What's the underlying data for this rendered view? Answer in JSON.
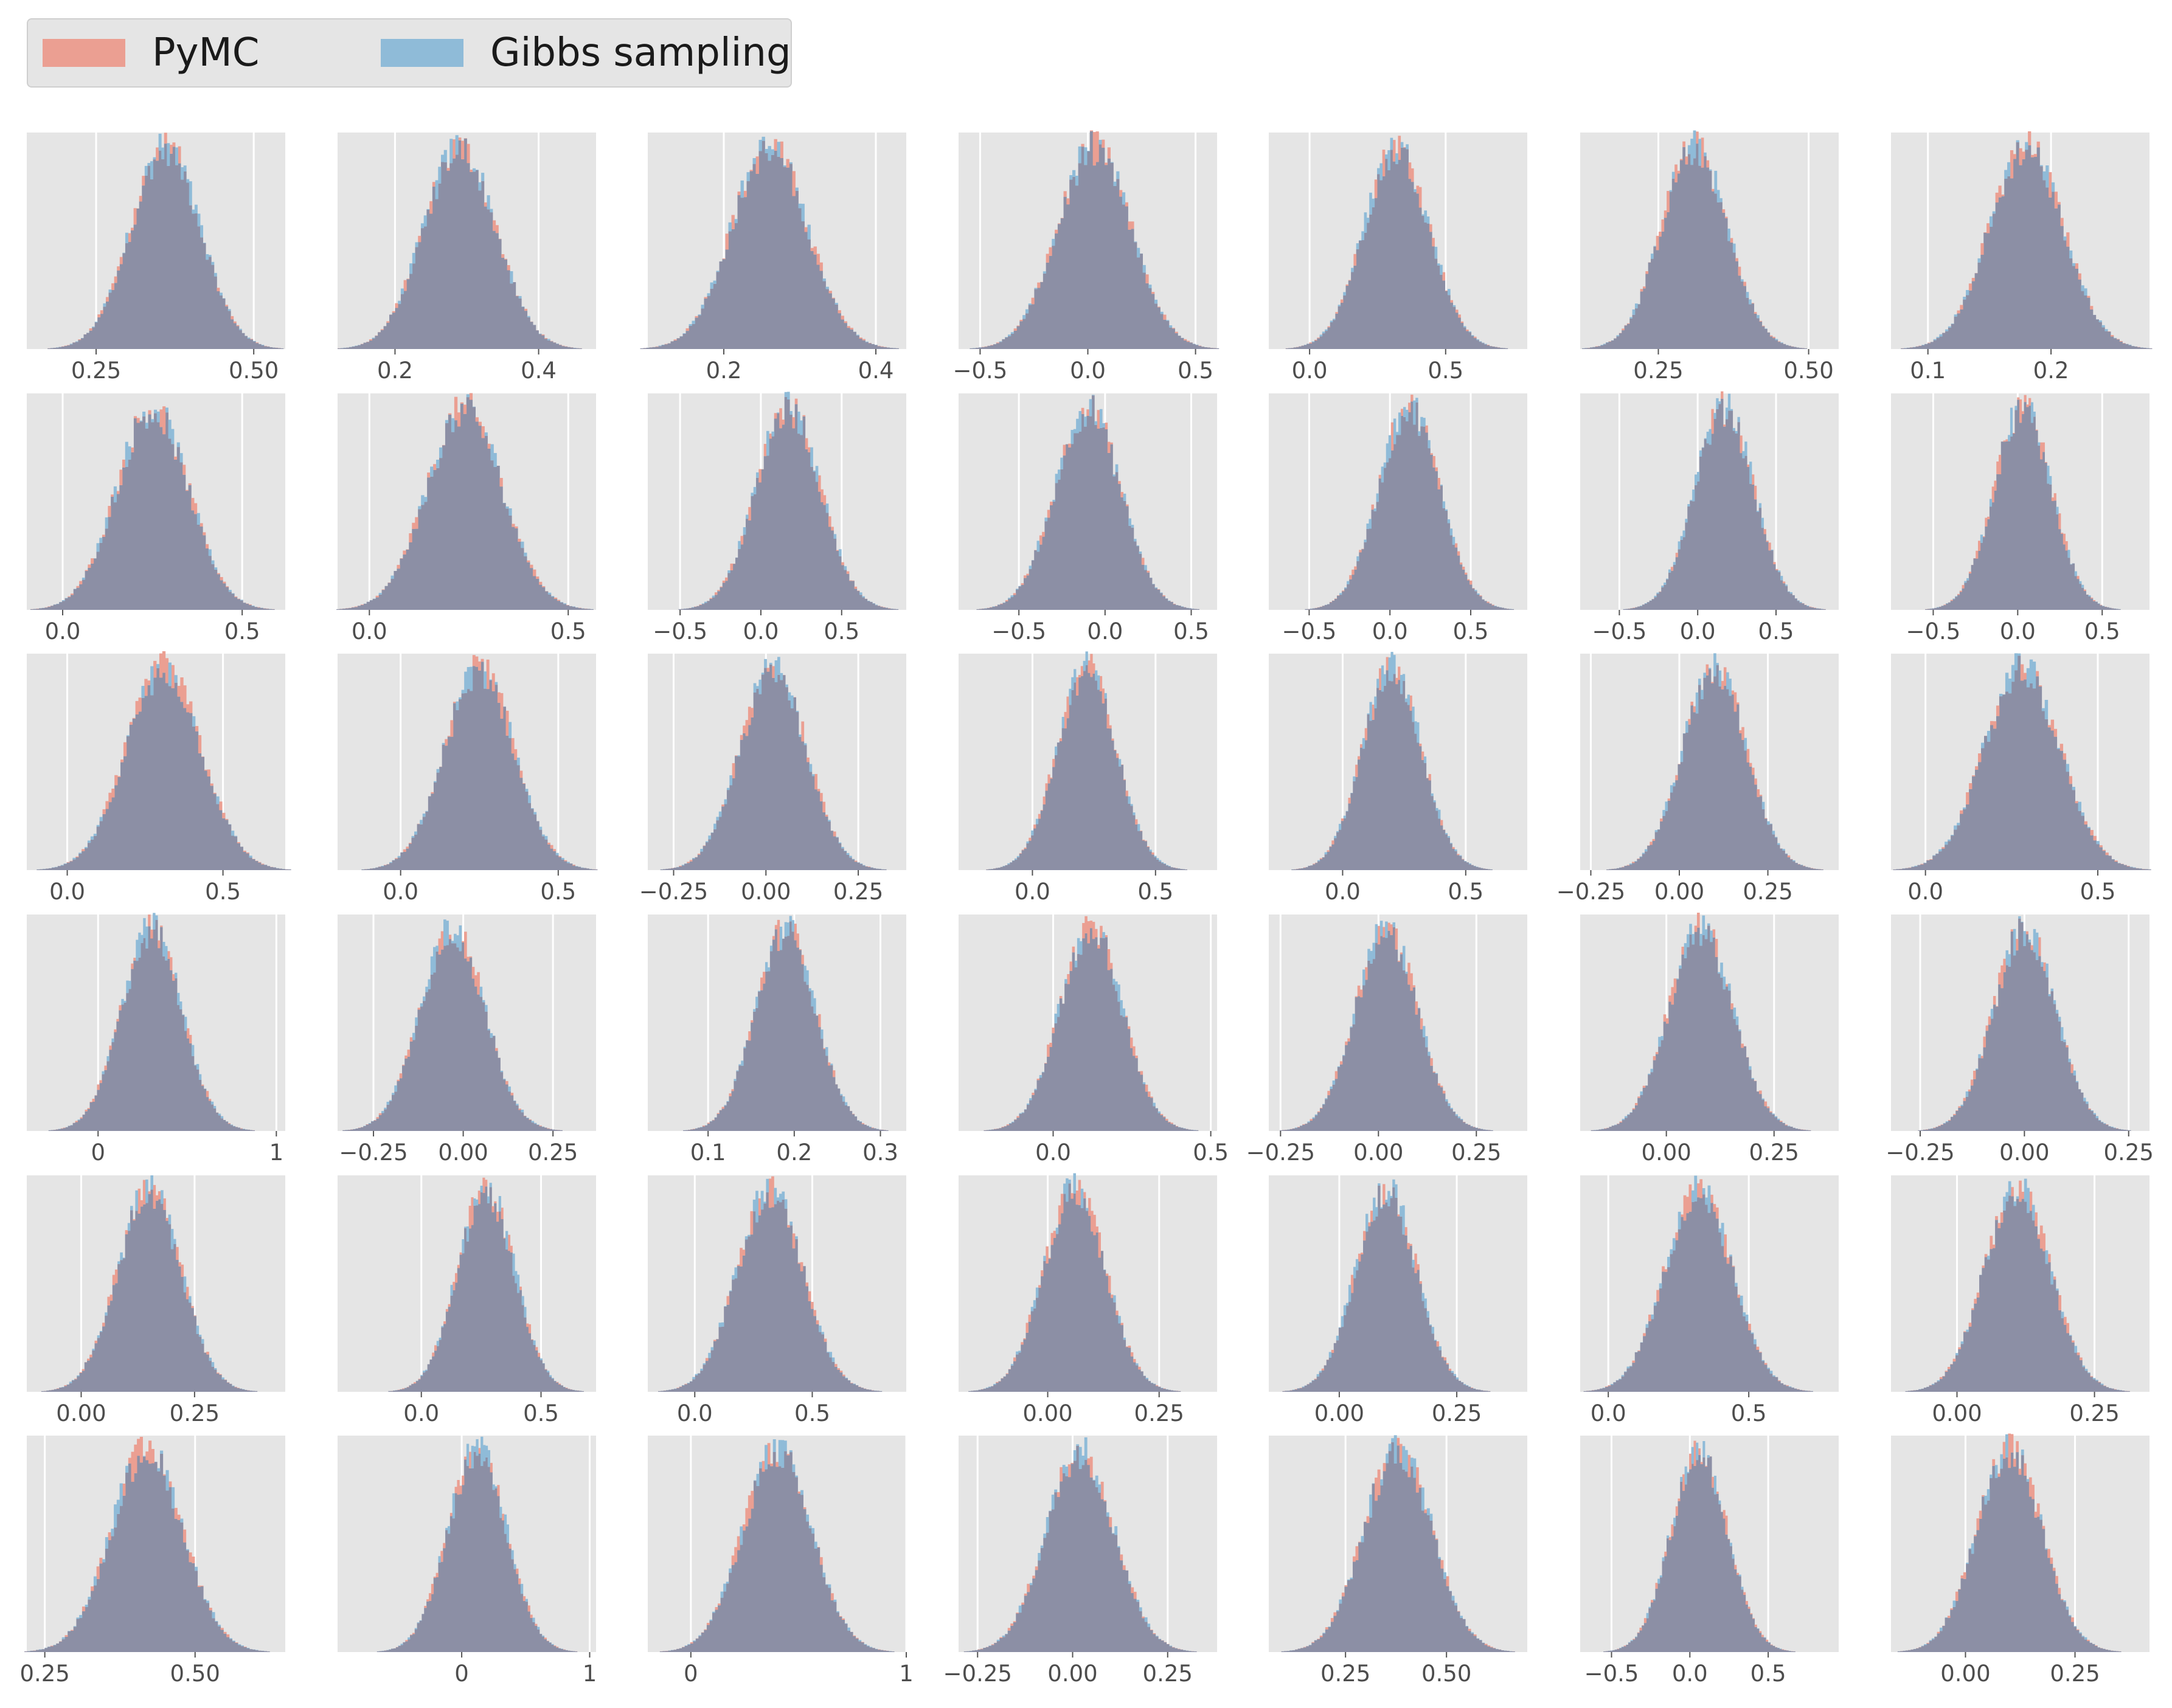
{
  "legend": {
    "items": [
      {
        "name": "PyMC",
        "color": "#E24A33",
        "fill": "#eb9f92"
      },
      {
        "name": "Gibbs sampling",
        "color": "#348ABD",
        "fill": "#8fbbd8"
      }
    ]
  },
  "style": {
    "panel_bg": "#E5E5E5",
    "grid": "#FFFFFF",
    "overlap_fill": "#8c8fa5",
    "tick_text": "#4D4D4D"
  },
  "chart_data": {
    "type": "histogram_grid",
    "rows": 6,
    "cols": 7,
    "series": [
      "PyMC",
      "Gibbs sampling"
    ],
    "panels": [
      {
        "xlim": [
          0.14,
          0.55
        ],
        "ticks": [
          0.25,
          0.5
        ],
        "tick_labels": [
          "0.25",
          "0.50"
        ],
        "mean": 0.36,
        "sd": 0.055
      },
      {
        "xlim": [
          0.12,
          0.48
        ],
        "ticks": [
          0.2,
          0.4
        ],
        "tick_labels": [
          "0.2",
          "0.4"
        ],
        "mean": 0.29,
        "sd": 0.05
      },
      {
        "xlim": [
          0.1,
          0.44
        ],
        "ticks": [
          0.2,
          0.4
        ],
        "tick_labels": [
          "0.2",
          "0.4"
        ],
        "mean": 0.26,
        "sd": 0.05
      },
      {
        "xlim": [
          -0.6,
          0.6
        ],
        "ticks": [
          -0.5,
          0,
          0.5
        ],
        "tick_labels": [
          "−0.5",
          "0.0",
          "0.5"
        ],
        "mean": 0.03,
        "sd": 0.17
      },
      {
        "xlim": [
          -0.15,
          0.8
        ],
        "ticks": [
          0,
          0.5
        ],
        "tick_labels": [
          "0.0",
          "0.5"
        ],
        "mean": 0.32,
        "sd": 0.12
      },
      {
        "xlim": [
          0.12,
          0.55
        ],
        "ticks": [
          0.25,
          0.5
        ],
        "tick_labels": [
          "0.25",
          "0.50"
        ],
        "mean": 0.31,
        "sd": 0.055
      },
      {
        "xlim": [
          0.07,
          0.28
        ],
        "ticks": [
          0.1,
          0.2
        ],
        "tick_labels": [
          "0.1",
          "0.2"
        ],
        "mean": 0.18,
        "sd": 0.03
      },
      {
        "xlim": [
          -0.1,
          0.62
        ],
        "ticks": [
          0,
          0.5
        ],
        "tick_labels": [
          "0.0",
          "0.5"
        ],
        "mean": 0.25,
        "sd": 0.1
      },
      {
        "xlim": [
          -0.08,
          0.57
        ],
        "ticks": [
          0,
          0.5
        ],
        "tick_labels": [
          "0.0",
          "0.5"
        ],
        "mean": 0.24,
        "sd": 0.095
      },
      {
        "xlim": [
          -0.7,
          0.9
        ],
        "ticks": [
          -0.5,
          0,
          0.5
        ],
        "tick_labels": [
          "−0.5",
          "0.0",
          "0.5"
        ],
        "mean": 0.17,
        "sd": 0.2
      },
      {
        "xlim": [
          -0.85,
          0.65
        ],
        "ticks": [
          -0.5,
          0,
          0.5
        ],
        "tick_labels": [
          "−0.5",
          "0.0",
          "0.5"
        ],
        "mean": -0.1,
        "sd": 0.19
      },
      {
        "xlim": [
          -0.75,
          0.85
        ],
        "ticks": [
          -0.5,
          0,
          0.5
        ],
        "tick_labels": [
          "−0.5",
          "0.0",
          "0.5"
        ],
        "mean": 0.12,
        "sd": 0.19
      },
      {
        "xlim": [
          -0.75,
          0.9
        ],
        "ticks": [
          -0.5,
          0,
          0.5
        ],
        "tick_labels": [
          "−0.5",
          "0.0",
          "0.5"
        ],
        "mean": 0.17,
        "sd": 0.19
      },
      {
        "xlim": [
          -0.75,
          0.78
        ],
        "ticks": [
          -0.5,
          0,
          0.5
        ],
        "tick_labels": [
          "−0.5",
          "0.0",
          "0.5"
        ],
        "mean": 0.03,
        "sd": 0.17
      },
      {
        "xlim": [
          -0.13,
          0.7
        ],
        "ticks": [
          0,
          0.5
        ],
        "tick_labels": [
          "0.0",
          "0.5"
        ],
        "mean": 0.31,
        "sd": 0.12
      },
      {
        "xlim": [
          -0.2,
          0.62
        ],
        "ticks": [
          0,
          0.5
        ],
        "tick_labels": [
          "0.0",
          "0.5"
        ],
        "mean": 0.25,
        "sd": 0.11
      },
      {
        "xlim": [
          -0.32,
          0.38
        ],
        "ticks": [
          -0.25,
          0,
          0.25
        ],
        "tick_labels": [
          "−0.25",
          "0.00",
          "0.25"
        ],
        "mean": 0.02,
        "sd": 0.09
      },
      {
        "xlim": [
          -0.3,
          0.75
        ],
        "ticks": [
          0,
          0.5
        ],
        "tick_labels": [
          "0.0",
          "0.5"
        ],
        "mean": 0.22,
        "sd": 0.12
      },
      {
        "xlim": [
          -0.3,
          0.75
        ],
        "ticks": [
          0,
          0.5
        ],
        "tick_labels": [
          "0.0",
          "0.5"
        ],
        "mean": 0.2,
        "sd": 0.12
      },
      {
        "xlim": [
          -0.28,
          0.45
        ],
        "ticks": [
          -0.25,
          0,
          0.25
        ],
        "tick_labels": [
          "−0.25",
          "0.00",
          "0.25"
        ],
        "mean": 0.1,
        "sd": 0.09
      },
      {
        "xlim": [
          -0.1,
          0.65
        ],
        "ticks": [
          0,
          0.5
        ],
        "tick_labels": [
          "0.0",
          "0.5"
        ],
        "mean": 0.28,
        "sd": 0.11
      },
      {
        "xlim": [
          -0.4,
          1.05
        ],
        "ticks": [
          0,
          1
        ],
        "tick_labels": [
          "0",
          "1"
        ],
        "mean": 0.3,
        "sd": 0.17
      },
      {
        "xlim": [
          -0.35,
          0.37
        ],
        "ticks": [
          -0.25,
          0,
          0.25
        ],
        "tick_labels": [
          "−0.25",
          "0.00",
          "0.25"
        ],
        "mean": -0.03,
        "sd": 0.09
      },
      {
        "xlim": [
          0.03,
          0.33
        ],
        "ticks": [
          0.1,
          0.2,
          0.3
        ],
        "tick_labels": [
          "0.1",
          "0.2",
          "0.3"
        ],
        "mean": 0.19,
        "sd": 0.035
      },
      {
        "xlim": [
          -0.3,
          0.52
        ],
        "ticks": [
          0,
          0.5
        ],
        "tick_labels": [
          "0.0",
          "0.5"
        ],
        "mean": 0.12,
        "sd": 0.1
      },
      {
        "xlim": [
          -0.28,
          0.38
        ],
        "ticks": [
          -0.25,
          0,
          0.25
        ],
        "tick_labels": [
          "−0.25",
          "0.00",
          "0.25"
        ],
        "mean": 0.02,
        "sd": 0.08
      },
      {
        "xlim": [
          -0.2,
          0.4
        ],
        "ticks": [
          0,
          0.25
        ],
        "tick_labels": [
          "0.00",
          "0.25"
        ],
        "mean": 0.08,
        "sd": 0.075
      },
      {
        "xlim": [
          -0.32,
          0.3
        ],
        "ticks": [
          -0.25,
          0,
          0.25
        ],
        "tick_labels": [
          "−0.25",
          "0.00",
          "0.25"
        ],
        "mean": 0.0,
        "sd": 0.075
      },
      {
        "xlim": [
          -0.12,
          0.45
        ],
        "ticks": [
          0,
          0.25
        ],
        "tick_labels": [
          "0.00",
          "0.25"
        ],
        "mean": 0.15,
        "sd": 0.07
      },
      {
        "xlim": [
          -0.35,
          0.73
        ],
        "ticks": [
          0,
          0.5
        ],
        "tick_labels": [
          "0.0",
          "0.5"
        ],
        "mean": 0.27,
        "sd": 0.12
      },
      {
        "xlim": [
          -0.2,
          0.9
        ],
        "ticks": [
          0,
          0.5
        ],
        "tick_labels": [
          "0.0",
          "0.5"
        ],
        "mean": 0.32,
        "sd": 0.14
      },
      {
        "xlim": [
          -0.2,
          0.38
        ],
        "ticks": [
          0,
          0.25
        ],
        "tick_labels": [
          "0.00",
          "0.25"
        ],
        "mean": 0.06,
        "sd": 0.07
      },
      {
        "xlim": [
          -0.15,
          0.4
        ],
        "ticks": [
          0,
          0.25
        ],
        "tick_labels": [
          "0.00",
          "0.25"
        ],
        "mean": 0.1,
        "sd": 0.065
      },
      {
        "xlim": [
          -0.1,
          0.82
        ],
        "ticks": [
          0,
          0.5
        ],
        "tick_labels": [
          "0.0",
          "0.5"
        ],
        "mean": 0.32,
        "sd": 0.12
      },
      {
        "xlim": [
          -0.12,
          0.35
        ],
        "ticks": [
          0,
          0.25
        ],
        "tick_labels": [
          "0.00",
          "0.25"
        ],
        "mean": 0.11,
        "sd": 0.06
      },
      {
        "xlim": [
          0.22,
          0.65
        ],
        "ticks": [
          0.25,
          0.5
        ],
        "tick_labels": [
          "0.25",
          "0.50"
        ],
        "mean": 0.42,
        "sd": 0.06
      },
      {
        "xlim": [
          -0.97,
          1.05
        ],
        "ticks": [
          0,
          1
        ],
        "tick_labels": [
          "0",
          "1"
        ],
        "mean": 0.12,
        "sd": 0.23
      },
      {
        "xlim": [
          -0.2,
          1.0
        ],
        "ticks": [
          0,
          1
        ],
        "tick_labels": [
          "0",
          "1"
        ],
        "mean": 0.4,
        "sd": 0.16
      },
      {
        "xlim": [
          -0.3,
          0.38
        ],
        "ticks": [
          -0.25,
          0,
          0.25
        ],
        "tick_labels": [
          "−0.25",
          "0.00",
          "0.25"
        ],
        "mean": 0.02,
        "sd": 0.09
      },
      {
        "xlim": [
          0.06,
          0.7
        ],
        "ticks": [
          0.25,
          0.5
        ],
        "tick_labels": [
          "0.25",
          "0.50"
        ],
        "mean": 0.38,
        "sd": 0.085
      },
      {
        "xlim": [
          -0.7,
          0.95
        ],
        "ticks": [
          -0.5,
          0,
          0.5
        ],
        "tick_labels": [
          "−0.5",
          "0.0",
          "0.5"
        ],
        "mean": 0.06,
        "sd": 0.18
      },
      {
        "xlim": [
          -0.17,
          0.42
        ],
        "ticks": [
          0,
          0.25
        ],
        "tick_labels": [
          "0.00",
          "0.25"
        ],
        "mean": 0.1,
        "sd": 0.075
      }
    ]
  }
}
